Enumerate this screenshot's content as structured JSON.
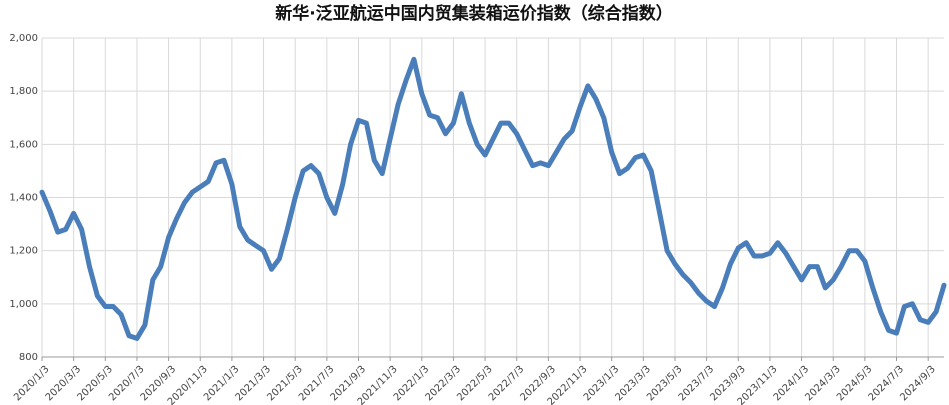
{
  "chart_data": {
    "type": "line",
    "title": "新华·泛亚航运中国内贸集装箱运价指数（综合指数）",
    "categories": [
      "2020/1/3",
      null,
      null,
      null,
      "2020/3/3",
      null,
      null,
      null,
      "2020/5/3",
      null,
      null,
      null,
      "2020/7/3",
      null,
      null,
      null,
      "2020/9/3",
      null,
      null,
      null,
      "2020/11/3",
      null,
      null,
      null,
      "2021/1/3",
      null,
      null,
      null,
      "2021/3/3",
      null,
      null,
      null,
      "2021/5/3",
      null,
      null,
      null,
      "2021/7/3",
      null,
      null,
      null,
      "2021/9/3",
      null,
      null,
      null,
      "2021/11/3",
      null,
      null,
      null,
      "2022/1/3",
      null,
      null,
      null,
      "2022/3/3",
      null,
      null,
      null,
      "2022/5/3",
      null,
      null,
      null,
      "2022/7/3",
      null,
      null,
      null,
      "2022/9/3",
      null,
      null,
      null,
      "2022/11/3",
      null,
      null,
      null,
      "2023/1/3",
      null,
      null,
      null,
      "2023/3/3",
      null,
      null,
      null,
      "2023/5/3",
      null,
      null,
      null,
      "2023/7/3",
      null,
      null,
      null,
      "2023/9/3",
      null,
      null,
      null,
      "2023/11/3",
      null,
      null,
      null,
      "2024/1/3",
      null,
      null,
      null,
      "2024/3/3",
      null,
      null,
      null,
      "2024/5/3",
      null,
      null,
      null,
      "2024/7/3",
      null,
      null,
      null,
      "2024/9/3",
      null,
      null
    ],
    "series": [
      {
        "color": "#4a7ebb",
        "values": [
          1420,
          1350,
          1270,
          1280,
          1340,
          1280,
          1140,
          1030,
          990,
          990,
          960,
          880,
          870,
          920,
          1090,
          1140,
          1250,
          1320,
          1380,
          1420,
          1440,
          1460,
          1530,
          1540,
          1450,
          1290,
          1240,
          1220,
          1200,
          1130,
          1170,
          1280,
          1400,
          1500,
          1520,
          1490,
          1400,
          1340,
          1450,
          1600,
          1690,
          1680,
          1540,
          1490,
          1620,
          1750,
          1840,
          1920,
          1790,
          1710,
          1700,
          1640,
          1680,
          1790,
          1680,
          1600,
          1560,
          1620,
          1680,
          1680,
          1640,
          1580,
          1520,
          1530,
          1520,
          1570,
          1620,
          1650,
          1740,
          1820,
          1770,
          1700,
          1570,
          1490,
          1510,
          1550,
          1560,
          1500,
          1350,
          1200,
          1150,
          1110,
          1080,
          1040,
          1010,
          990,
          1060,
          1150,
          1210,
          1230,
          1180,
          1180,
          1190,
          1230,
          1190,
          1140,
          1090,
          1140,
          1140,
          1060,
          1090,
          1140,
          1200,
          1200,
          1160,
          1060,
          970,
          900,
          890,
          990,
          1000,
          940,
          930,
          970,
          1070
        ]
      }
    ],
    "ylim": [
      800,
      2000
    ],
    "yticks": [
      800,
      {
        "value": 1000,
        "label": "1,000"
      },
      {
        "value": 1200,
        "label": "1,200"
      },
      {
        "value": 1400,
        "label": "1,400"
      },
      {
        "value": 1600,
        "label": "1,600"
      },
      {
        "value": 1800,
        "label": "1,800"
      },
      {
        "value": 2000,
        "label": "2,000"
      }
    ],
    "grid": true
  }
}
